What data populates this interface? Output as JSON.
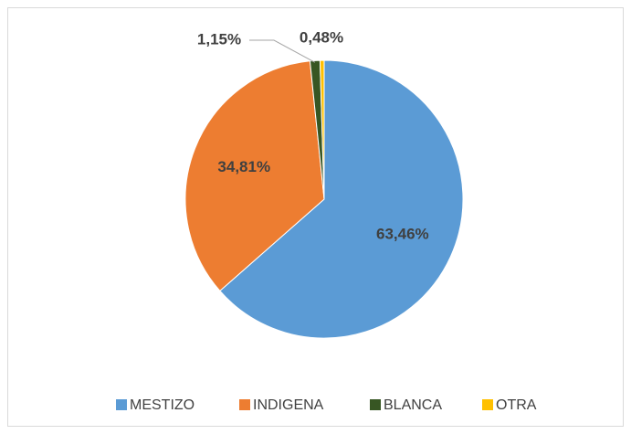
{
  "chart_data": {
    "type": "pie",
    "categories": [
      "MESTIZO",
      "INDIGENA",
      "BLANCA",
      "OTRA"
    ],
    "values": [
      63.46,
      34.81,
      1.15,
      0.48
    ],
    "value_labels": [
      "63,46%",
      "34,81%",
      "1,15%",
      "0,48%"
    ],
    "colors": [
      "#5b9bd5",
      "#ed7d31",
      "#375623",
      "#ffc000"
    ],
    "legend": "bottom"
  }
}
